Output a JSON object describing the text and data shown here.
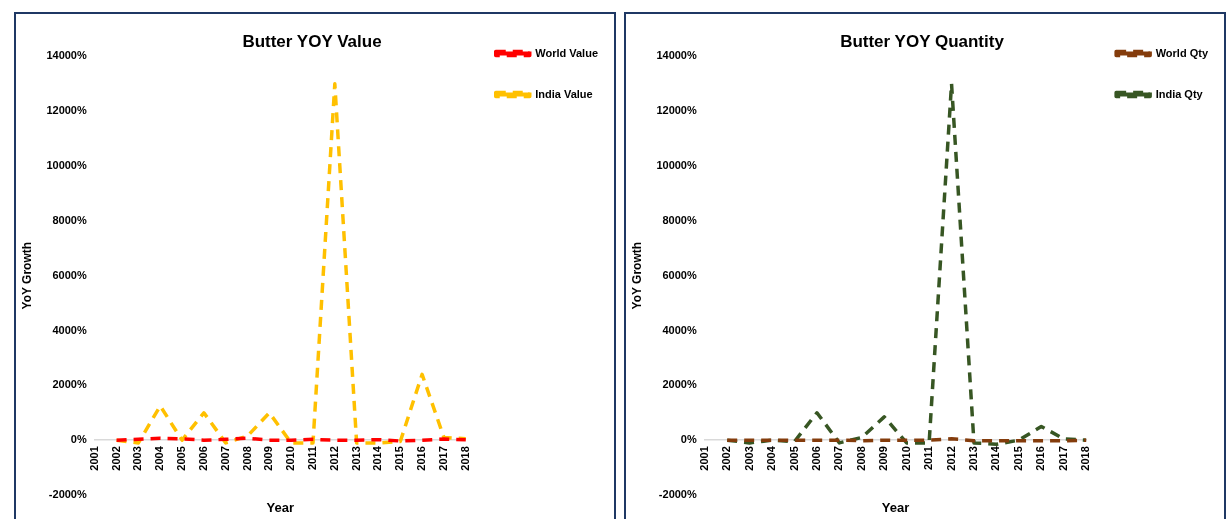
{
  "chart_data": [
    {
      "type": "line",
      "title": "Butter YOY Value",
      "xlabel": "Year",
      "ylabel": "YoY Growth",
      "categories": [
        "2001",
        "2002",
        "2003",
        "2004",
        "2005",
        "2006",
        "2007",
        "2008",
        "2009",
        "2010",
        "2011",
        "2012",
        "2013",
        "2014",
        "2015",
        "2016",
        "2017",
        "2018"
      ],
      "series": [
        {
          "name": "World Value",
          "color": "#ff0000",
          "values": [
            null,
            0,
            30,
            70,
            50,
            0,
            30,
            70,
            0,
            0,
            30,
            0,
            0,
            20,
            -30,
            0,
            40,
            20
          ]
        },
        {
          "name": "India Value",
          "color": "#ffc000",
          "values": [
            null,
            0,
            -100,
            1250,
            0,
            1000,
            -100,
            150,
            1000,
            -100,
            -100,
            13000,
            -100,
            -100,
            -50,
            2400,
            100,
            50
          ]
        }
      ],
      "ylim": [
        -2000,
        14000
      ],
      "yticks": [
        {
          "value": -2000,
          "label": "-2000%"
        },
        {
          "value": 0,
          "label": "0%"
        },
        {
          "value": 2000,
          "label": "2000%"
        },
        {
          "value": 4000,
          "label": "4000%"
        },
        {
          "value": 6000,
          "label": "6000%"
        },
        {
          "value": 8000,
          "label": "8000%"
        },
        {
          "value": 10000,
          "label": "10000%"
        },
        {
          "value": 12000,
          "label": "12000%"
        },
        {
          "value": 14000,
          "label": "14000%"
        }
      ],
      "legend": "top right",
      "line_style": "dashed"
    },
    {
      "type": "line",
      "title": "Butter YOY Quantity",
      "xlabel": "Year",
      "ylabel": "YoY Growth",
      "categories": [
        "2001",
        "2002",
        "2003",
        "2004",
        "2005",
        "2006",
        "2007",
        "2008",
        "2009",
        "2010",
        "2011",
        "2012",
        "2013",
        "2014",
        "2015",
        "2016",
        "2017",
        "2018"
      ],
      "series": [
        {
          "name": "World Qty",
          "color": "#843c0c",
          "values": [
            null,
            0,
            0,
            0,
            0,
            0,
            0,
            -20,
            0,
            0,
            0,
            50,
            -20,
            -20,
            -20,
            -20,
            -20,
            0
          ]
        },
        {
          "name": "India Qty",
          "color": "#375623",
          "values": [
            null,
            0,
            -100,
            0,
            -50,
            1000,
            -100,
            100,
            850,
            -100,
            -100,
            13000,
            -100,
            -150,
            0,
            500,
            50,
            0
          ]
        }
      ],
      "ylim": [
        -2000,
        14000
      ],
      "yticks": [
        {
          "value": -2000,
          "label": "-2000%"
        },
        {
          "value": 0,
          "label": "0%"
        },
        {
          "value": 2000,
          "label": "2000%"
        },
        {
          "value": 4000,
          "label": "4000%"
        },
        {
          "value": 6000,
          "label": "6000%"
        },
        {
          "value": 8000,
          "label": "8000%"
        },
        {
          "value": 10000,
          "label": "10000%"
        },
        {
          "value": 12000,
          "label": "12000%"
        },
        {
          "value": 14000,
          "label": "14000%"
        }
      ],
      "legend": "top right",
      "line_style": "dashed"
    }
  ]
}
